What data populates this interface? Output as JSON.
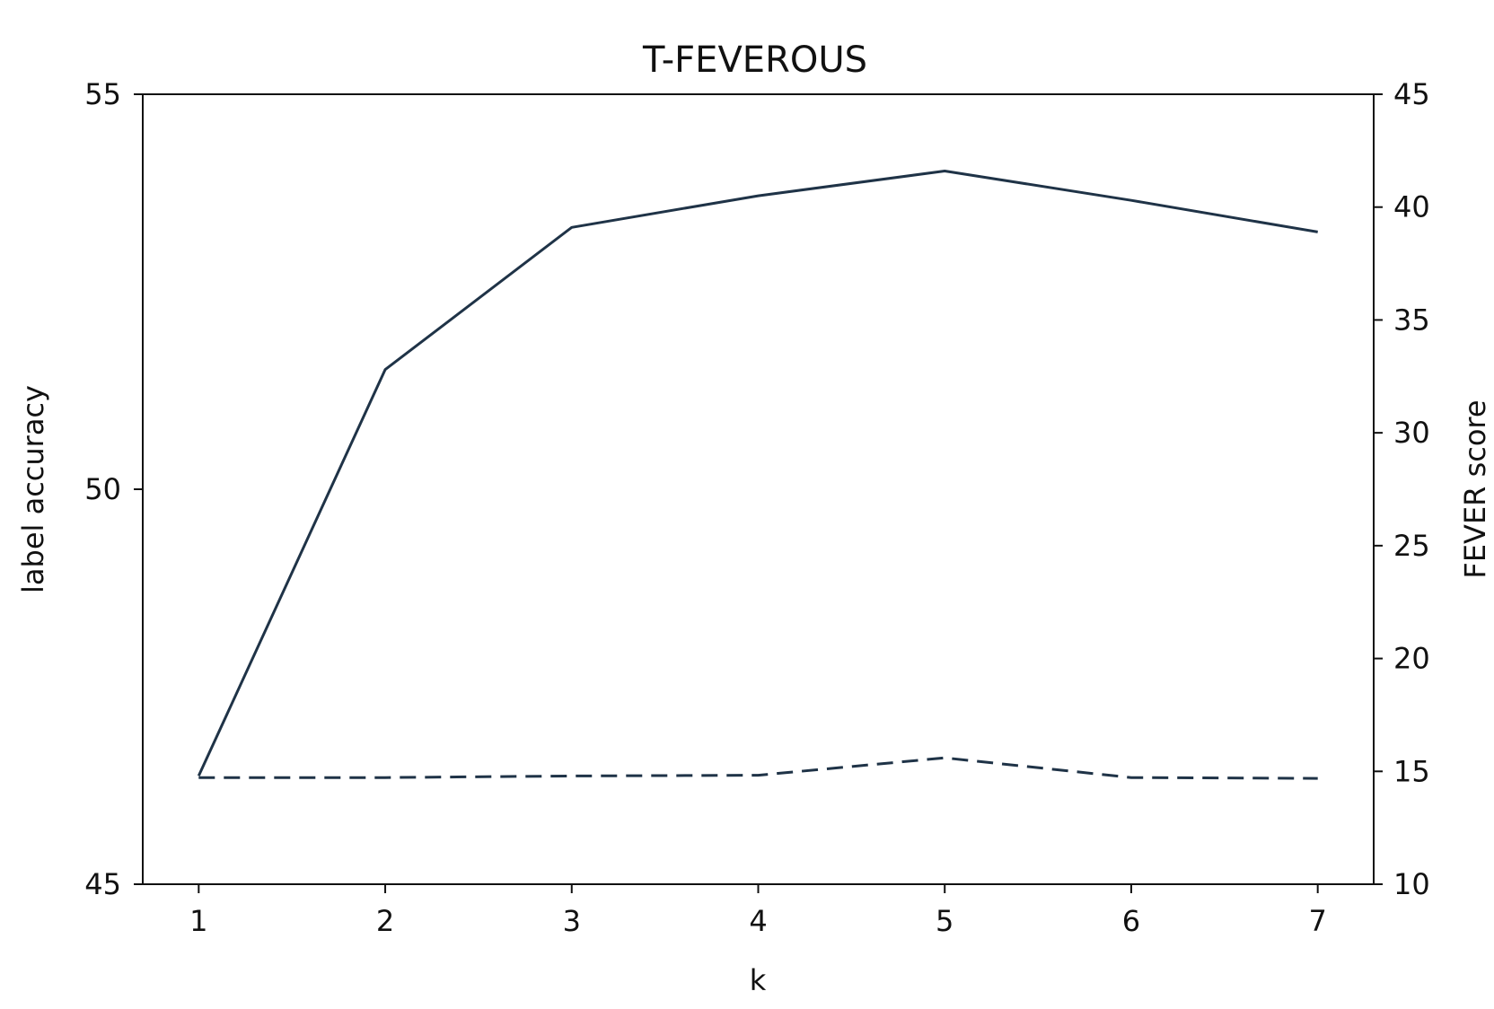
{
  "chart_data": {
    "type": "line",
    "title": "T-FEVEROUS",
    "xlabel": "k",
    "ylabel_left": "label accuracy",
    "ylabel_right": "FEVER score",
    "x": [
      1,
      2,
      3,
      4,
      5,
      6,
      7
    ],
    "xticks": [
      "1",
      "2",
      "3",
      "4",
      "5",
      "6",
      "7"
    ],
    "xlim": [
      0.7,
      7.3
    ],
    "ylim_left": [
      45,
      55
    ],
    "ylim_right": [
      10,
      45
    ],
    "yticks_left": [
      "45",
      "50",
      "55"
    ],
    "yticks_right": [
      "10",
      "15",
      "20",
      "25",
      "30",
      "35",
      "40",
      "45"
    ],
    "grid": false,
    "series": [
      {
        "axis": "right",
        "style": "solid",
        "color": "#1f3347",
        "values": [
          14.8,
          32.8,
          39.1,
          40.5,
          41.6,
          40.3,
          38.9
        ]
      },
      {
        "axis": "left",
        "style": "dashed",
        "color": "#1f3347",
        "values": [
          46.35,
          46.35,
          46.37,
          46.38,
          46.6,
          46.35,
          46.34
        ]
      }
    ]
  }
}
